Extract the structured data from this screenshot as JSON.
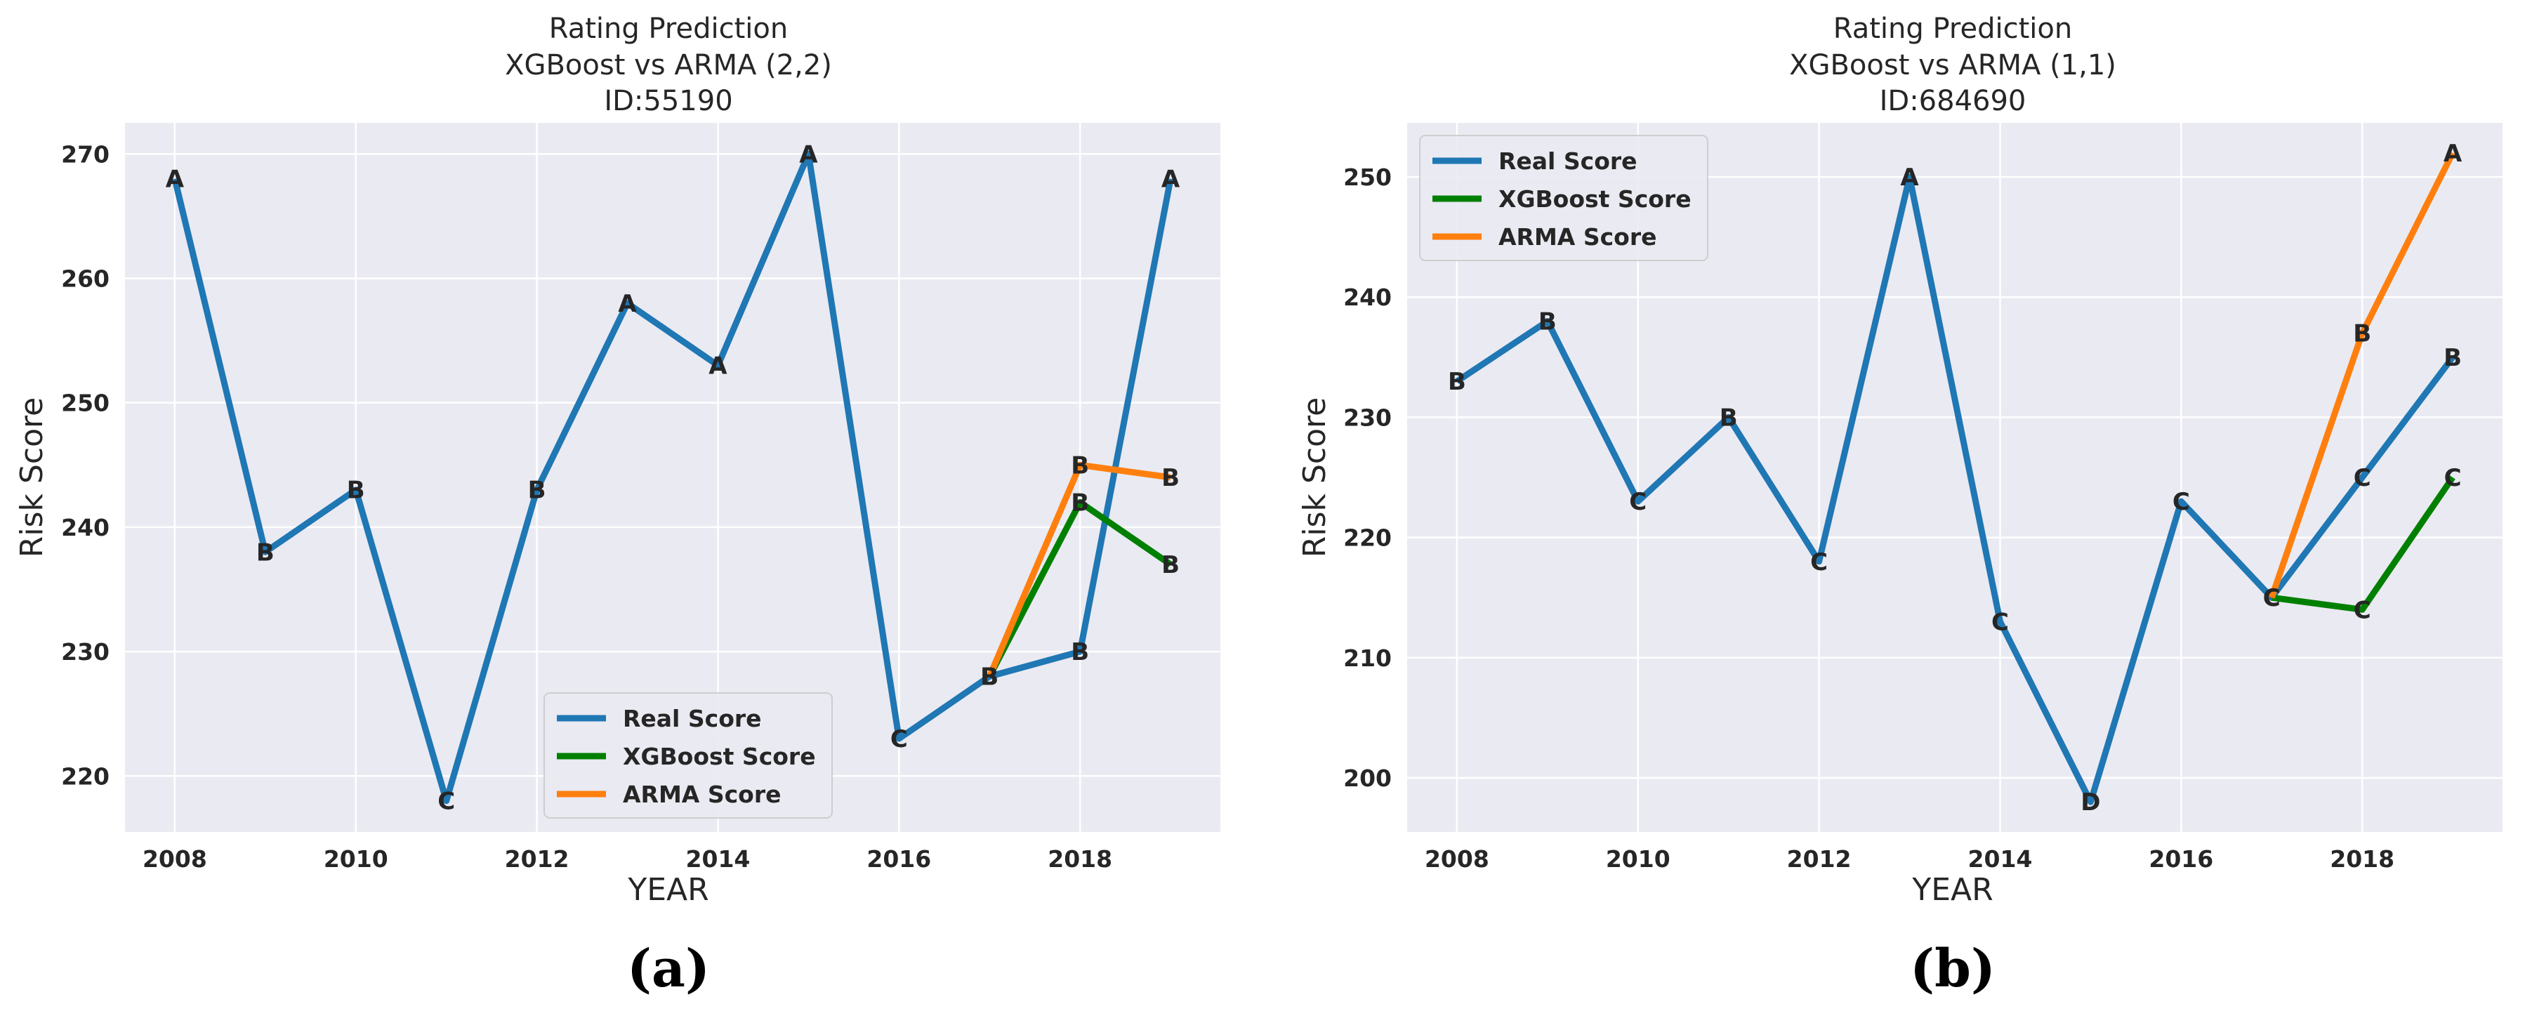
{
  "colors": {
    "background": "#eaeaf2",
    "grid": "#ffffff",
    "real": "#1f77b4",
    "xgboost": "#008000",
    "arma": "#ff7f0e"
  },
  "chart_data": [
    {
      "type": "line",
      "title_lines": [
        "Rating Prediction",
        "XGBoost vs ARMA (2,2)",
        "ID:55190"
      ],
      "xlabel": "YEAR",
      "ylabel": "Risk Score",
      "xlim": [
        2007.45,
        2019.55
      ],
      "ylim": [
        215.5,
        272.5
      ],
      "xticks": [
        2008,
        2010,
        2012,
        2014,
        2016,
        2018
      ],
      "yticks": [
        220,
        230,
        240,
        250,
        260,
        270
      ],
      "legend_position": "lower-center",
      "panel_label": "(a)",
      "series": [
        {
          "name": "Real Score",
          "color_key": "real",
          "x": [
            2008,
            2009,
            2010,
            2011,
            2012,
            2013,
            2014,
            2015,
            2016,
            2017,
            2018,
            2019
          ],
          "y": [
            268,
            238,
            243,
            218,
            243,
            258,
            253,
            270,
            223,
            228,
            230,
            268
          ],
          "labels": [
            "A",
            "B",
            "B",
            "C",
            "B",
            "A",
            "A",
            "A",
            "C",
            "B",
            "B",
            "A"
          ]
        },
        {
          "name": "XGBoost Score",
          "color_key": "xgboost",
          "x": [
            2017,
            2018,
            2019
          ],
          "y": [
            228,
            242,
            237
          ],
          "labels": [
            "B",
            "B",
            "B"
          ]
        },
        {
          "name": "ARMA Score",
          "color_key": "arma",
          "x": [
            2017,
            2018,
            2019
          ],
          "y": [
            228,
            245,
            244
          ],
          "labels": [
            "B",
            "B",
            "B"
          ]
        }
      ]
    },
    {
      "type": "line",
      "title_lines": [
        "Rating Prediction",
        "XGBoost vs ARMA (1,1)",
        "ID:684690"
      ],
      "xlabel": "YEAR",
      "ylabel": "Risk Score",
      "xlim": [
        2007.45,
        2019.55
      ],
      "ylim": [
        195.5,
        254.5
      ],
      "xticks": [
        2008,
        2010,
        2012,
        2014,
        2016,
        2018
      ],
      "yticks": [
        200,
        210,
        220,
        230,
        240,
        250
      ],
      "legend_position": "upper-left",
      "panel_label": "(b)",
      "series": [
        {
          "name": "Real Score",
          "color_key": "real",
          "x": [
            2008,
            2009,
            2010,
            2011,
            2012,
            2013,
            2014,
            2015,
            2016,
            2017,
            2018,
            2019
          ],
          "y": [
            233,
            238,
            223,
            230,
            218,
            250,
            213,
            198,
            223,
            215,
            225,
            235
          ],
          "labels": [
            "B",
            "B",
            "C",
            "B",
            "C",
            "A",
            "C",
            "D",
            "C",
            "C",
            "C",
            "B"
          ]
        },
        {
          "name": "XGBoost Score",
          "color_key": "xgboost",
          "x": [
            2017,
            2018,
            2019
          ],
          "y": [
            215,
            214,
            225
          ],
          "labels": [
            "C",
            "C",
            "C"
          ]
        },
        {
          "name": "ARMA Score",
          "color_key": "arma",
          "x": [
            2017,
            2018,
            2019
          ],
          "y": [
            215,
            237,
            252
          ],
          "labels": [
            "C",
            "B",
            "A"
          ]
        }
      ]
    }
  ]
}
